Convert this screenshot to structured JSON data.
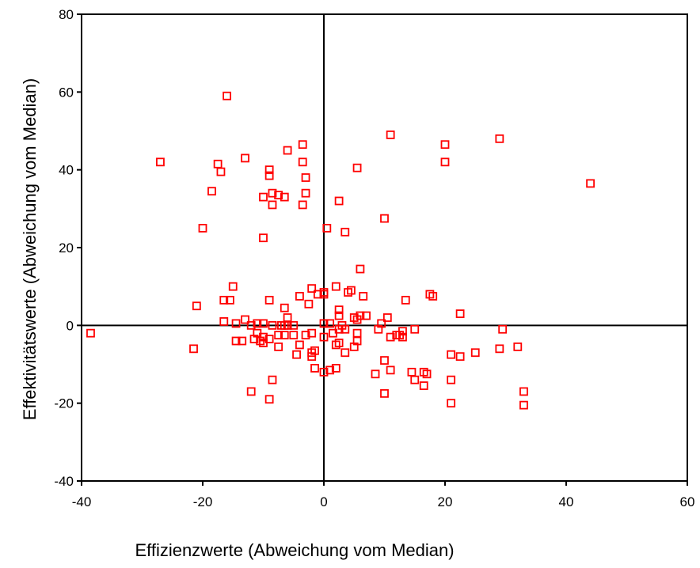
{
  "chart_data": {
    "type": "scatter",
    "title": "",
    "xlabel": "Effizienzwerte (Abweichung vom Median)",
    "ylabel": "Effektivitätswerte (Abweichung vom Median)",
    "xlim": [
      -40,
      60
    ],
    "ylim": [
      -40,
      80
    ],
    "xticks": [
      -40,
      -20,
      0,
      20,
      40,
      60
    ],
    "yticks": [
      -40,
      -20,
      0,
      20,
      40,
      60,
      80
    ],
    "reference_lines": {
      "x": 0,
      "y": 0
    },
    "grid": false,
    "legend": "none",
    "marker": "hollow-square",
    "marker_color": "#ff0000",
    "points": [
      [
        -16,
        59
      ],
      [
        -27,
        42
      ],
      [
        -17.5,
        41.5
      ],
      [
        -17,
        39.5
      ],
      [
        -18.5,
        34.5
      ],
      [
        -20,
        25
      ],
      [
        -13,
        43
      ],
      [
        -9,
        40
      ],
      [
        -9,
        38.5
      ],
      [
        -8.5,
        34
      ],
      [
        -10,
        33
      ],
      [
        -8.5,
        31
      ],
      [
        -7.5,
        33.5
      ],
      [
        -6.5,
        33
      ],
      [
        -6,
        45
      ],
      [
        -3.5,
        46.5
      ],
      [
        -3.5,
        42
      ],
      [
        -3,
        38
      ],
      [
        -3,
        34
      ],
      [
        -3.5,
        31
      ],
      [
        -10,
        22.5
      ],
      [
        2.5,
        32
      ],
      [
        3.5,
        24
      ],
      [
        0.5,
        25
      ],
      [
        5.5,
        40.5
      ],
      [
        11,
        49
      ],
      [
        10,
        27.5
      ],
      [
        20,
        46.5
      ],
      [
        20,
        42
      ],
      [
        29,
        48
      ],
      [
        44,
        36.5
      ],
      [
        -38.5,
        -2
      ],
      [
        -21,
        5
      ],
      [
        -16.5,
        6.5
      ],
      [
        -15.5,
        6.5
      ],
      [
        -15,
        10
      ],
      [
        -16.5,
        1
      ],
      [
        -14.5,
        0.5
      ],
      [
        -13,
        1.5
      ],
      [
        -12,
        0
      ],
      [
        -11,
        0.5
      ],
      [
        -10,
        0.5
      ],
      [
        -9,
        6.5
      ],
      [
        -8.5,
        0
      ],
      [
        -7,
        0
      ],
      [
        -6.5,
        0
      ],
      [
        -6,
        0
      ],
      [
        -6.5,
        4.5
      ],
      [
        -6,
        2
      ],
      [
        -4,
        7.5
      ],
      [
        -2.5,
        5.5
      ],
      [
        -2,
        9.5
      ],
      [
        -1,
        8
      ],
      [
        0,
        8.5
      ],
      [
        0,
        8
      ],
      [
        2,
        10
      ],
      [
        2.5,
        4
      ],
      [
        2.5,
        2.5
      ],
      [
        4,
        8.5
      ],
      [
        4.5,
        9
      ],
      [
        6,
        14.5
      ],
      [
        6.5,
        7.5
      ],
      [
        7,
        2.5
      ],
      [
        6,
        2.5
      ],
      [
        5,
        2
      ],
      [
        5.5,
        1.5
      ],
      [
        10.5,
        2
      ],
      [
        13.5,
        6.5
      ],
      [
        17.5,
        8
      ],
      [
        18,
        7.5
      ],
      [
        22.5,
        3
      ],
      [
        29.5,
        -1
      ],
      [
        32,
        -5.5
      ],
      [
        29,
        -6
      ],
      [
        25,
        -7
      ],
      [
        22.5,
        -8
      ],
      [
        21,
        -7.5
      ],
      [
        33,
        -17
      ],
      [
        33,
        -20.5
      ],
      [
        21,
        -14
      ],
      [
        21,
        -20
      ],
      [
        16.5,
        -12
      ],
      [
        17,
        -12.5
      ],
      [
        16.5,
        -15.5
      ],
      [
        14.5,
        -12
      ],
      [
        15,
        -14
      ],
      [
        11,
        -11.5
      ],
      [
        10,
        -9
      ],
      [
        10,
        -17.5
      ],
      [
        8.5,
        -12.5
      ],
      [
        13,
        -3
      ],
      [
        13,
        -1.5
      ],
      [
        12.5,
        -2.5
      ],
      [
        12,
        -2.5
      ],
      [
        11,
        -3
      ],
      [
        15,
        -1
      ],
      [
        9.5,
        0.5
      ],
      [
        9,
        -1
      ],
      [
        5.5,
        -2
      ],
      [
        5.5,
        -4
      ],
      [
        5,
        -5.5
      ],
      [
        3.5,
        -7
      ],
      [
        2.5,
        -4.5
      ],
      [
        2,
        -5
      ],
      [
        2,
        -11
      ],
      [
        1.5,
        -2
      ],
      [
        0,
        -3
      ],
      [
        0,
        -12
      ],
      [
        1,
        -11.5
      ],
      [
        -1.5,
        -6.5
      ],
      [
        -2,
        -8
      ],
      [
        -1.5,
        -11
      ],
      [
        -2,
        -7
      ],
      [
        -3,
        -2.5
      ],
      [
        -4,
        -5
      ],
      [
        -4.5,
        -7.5
      ],
      [
        -5,
        -2.5
      ],
      [
        -6.5,
        -2.5
      ],
      [
        -7.5,
        -5.5
      ],
      [
        -7.5,
        -2.5
      ],
      [
        -9,
        -3.5
      ],
      [
        -10,
        -4.5
      ],
      [
        -10.5,
        -4
      ],
      [
        -11.5,
        -3.5
      ],
      [
        -13.5,
        -4
      ],
      [
        -14.5,
        -4
      ],
      [
        -11,
        -2
      ],
      [
        -10,
        -3
      ],
      [
        -12,
        -17
      ],
      [
        -9,
        -19
      ],
      [
        -8.5,
        -14
      ],
      [
        -21.5,
        -6
      ],
      [
        0,
        0.5
      ],
      [
        1,
        0.5
      ],
      [
        3,
        0
      ],
      [
        3.5,
        -1
      ],
      [
        2.5,
        -1
      ],
      [
        -5,
        0
      ],
      [
        -2,
        -2
      ]
    ]
  }
}
